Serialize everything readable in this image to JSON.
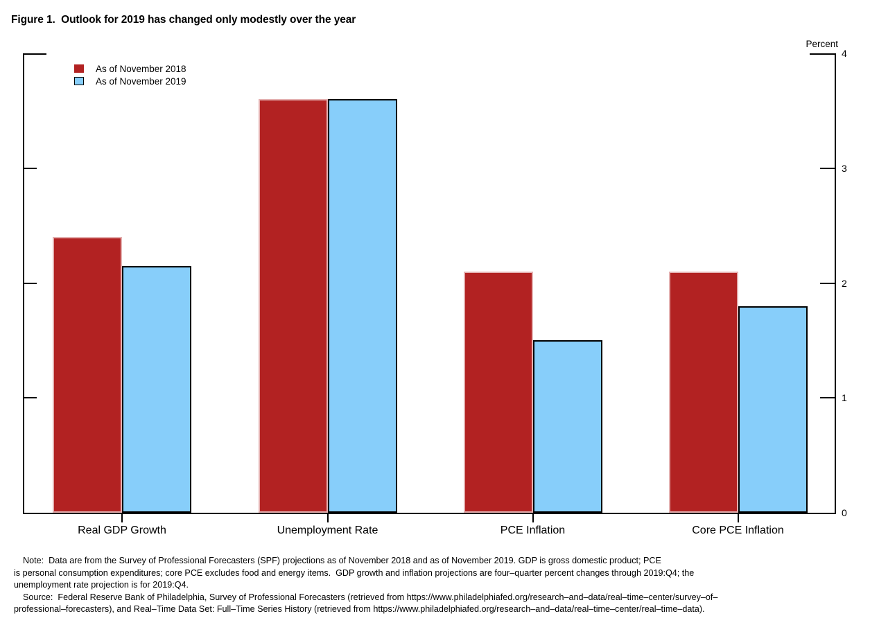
{
  "figure": {
    "title": "Figure 1.  Outlook for 2019 has changed only modestly over the year"
  },
  "chart_data": {
    "type": "bar",
    "title": "Figure 1.  Outlook for 2019 has changed only modestly over the year",
    "unit_label": "Percent",
    "categories": [
      "Real GDP Growth",
      "Unemployment Rate",
      "PCE Inflation",
      "Core PCE Inflation"
    ],
    "series": [
      {
        "name": "As of November 2018",
        "color": "#b22222",
        "border": "#e4b0b0",
        "legend_border": "#b22222",
        "values": [
          2.4,
          3.6,
          2.1,
          2.1
        ]
      },
      {
        "name": "As of November 2019",
        "color": "#87cefa",
        "border": "#000000",
        "legend_border": "#000000",
        "values": [
          2.15,
          3.6,
          1.5,
          1.8
        ]
      }
    ],
    "ylim": [
      0,
      4
    ],
    "y_ticks": [
      0,
      1,
      2,
      3,
      4
    ],
    "y_axis_side": "right",
    "grid": false,
    "legend_position": "top-left",
    "axis_color": "#000000"
  },
  "note": {
    "lines": [
      "Note:  Data are from the Survey of Professional Forecasters (SPF) projections as of November 2018 and as of November 2019. GDP is gross domestic product; PCE",
      "is personal consumption expenditures; core PCE excludes food and energy items.  GDP growth and inflation projections are four–quarter percent changes through 2019:Q4; the",
      "unemployment rate projection is for 2019:Q4.",
      "Source:  Federal Reserve Bank of Philadelphia, Survey of Professional Forecasters (retrieved from https://www.philadelphiafed.org/research–and–data/real–time–center/survey–of–",
      "professional–forecasters), and Real–Time Data Set: Full–Time Series History (retrieved from https://www.philadelphiafed.org/research–and–data/real–time–center/real–time–data)."
    ]
  }
}
